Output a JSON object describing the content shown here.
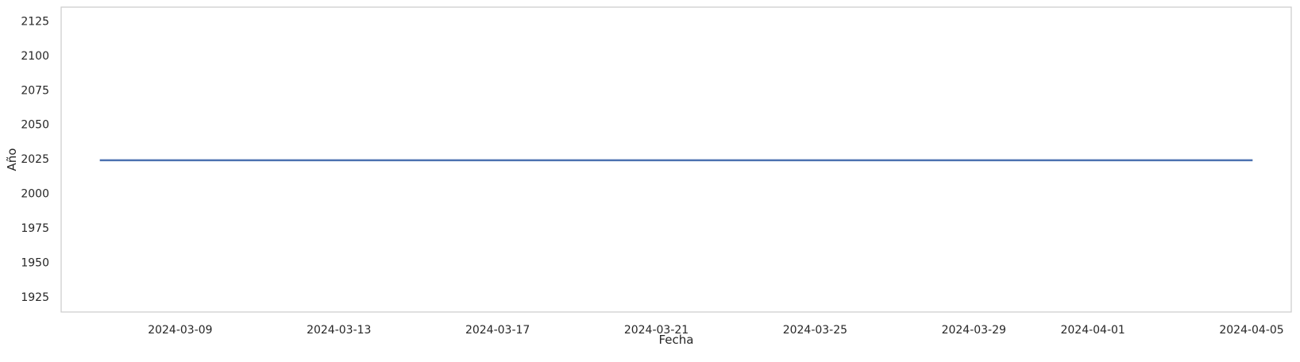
{
  "chart_data": {
    "type": "line",
    "title": "",
    "xlabel": "Fecha",
    "ylabel": "Año",
    "x_type": "date",
    "xlim": [
      "2024-03-06",
      "2024-04-06"
    ],
    "ylim": [
      1914,
      2135
    ],
    "grid": false,
    "legend": "none",
    "x_ticks": [
      "2024-03-09",
      "2024-03-13",
      "2024-03-17",
      "2024-03-21",
      "2024-03-25",
      "2024-03-29",
      "2024-04-01",
      "2024-04-05"
    ],
    "y_ticks": [
      1925,
      1950,
      1975,
      2000,
      2025,
      2050,
      2075,
      2100,
      2125
    ],
    "series": [
      {
        "x": [
          "2024-03-07",
          "2024-04-05"
        ],
        "y": [
          2024,
          2024
        ]
      }
    ],
    "colors": {
      "line": "#4c72b0",
      "frame": "#cccccc",
      "text": "#262626",
      "background": "#ffffff"
    }
  }
}
